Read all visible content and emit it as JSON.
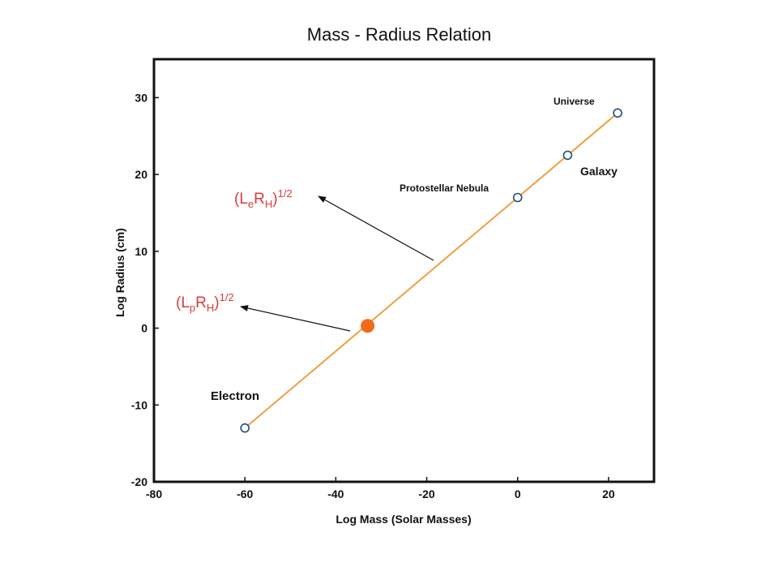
{
  "chart_data": {
    "type": "scatter",
    "title": "Mass - Radius Relation",
    "xlabel": "Log Mass (Solar Masses)",
    "ylabel": "Log Radius (cm)",
    "xlim": [
      -80,
      30
    ],
    "ylim": [
      -20,
      35
    ],
    "x_ticks": [
      -80,
      -60,
      -40,
      -20,
      0,
      20
    ],
    "y_ticks": [
      -20,
      -10,
      0,
      10,
      20,
      30
    ],
    "grid": false,
    "line": {
      "x": [
        -60,
        22
      ],
      "y": [
        -13,
        28
      ],
      "color": "#f0a040"
    },
    "points": [
      {
        "name": "Electron",
        "x": -60,
        "y": -13
      },
      {
        "name": "Protostellar Nebula",
        "x": 0,
        "y": 17
      },
      {
        "name": "Galaxy",
        "x": 11,
        "y": 22.5
      },
      {
        "name": "Universe",
        "x": 22,
        "y": 28
      }
    ],
    "highlight_point": {
      "x": -33,
      "y": 0.3,
      "color": "#f26a1b"
    },
    "annotations": [
      {
        "base": "L",
        "sub1": "e",
        "mid": "R",
        "sub2": "H",
        "sup": "1/2"
      },
      {
        "base": "L",
        "sub1": "p",
        "mid": "R",
        "sub2": "H",
        "sup": "1/2"
      }
    ],
    "colors": {
      "line": "#f0a040",
      "marker_edge": "#1f4e79",
      "highlight": "#f26a1b",
      "annotation": "#d93b3b"
    }
  }
}
